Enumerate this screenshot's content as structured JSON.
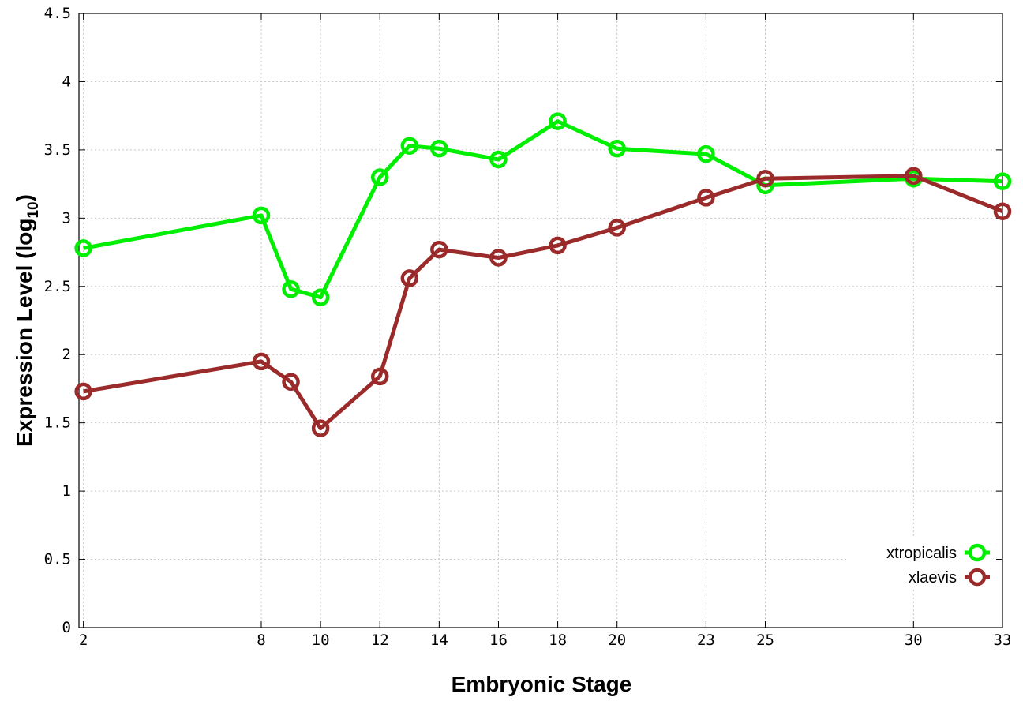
{
  "chart_data": {
    "type": "line",
    "title": "",
    "xlabel": "Embryonic Stage",
    "ylabel": "Expression Level (log",
    "ylabel_sub": "10",
    "ylabel_close": ")",
    "xlim": [
      1.85,
      33
    ],
    "ylim": [
      0,
      4.5
    ],
    "x": [
      2,
      8,
      9,
      10,
      12,
      13,
      14,
      16,
      18,
      20,
      23,
      25,
      30,
      33
    ],
    "x_ticks": [
      2,
      8,
      10,
      12,
      14,
      16,
      18,
      20,
      23,
      25,
      30,
      33
    ],
    "x_tick_labels": [
      "2",
      "8",
      "10",
      "12",
      "14",
      "16",
      "18",
      "20",
      "23",
      "25",
      "30",
      "33"
    ],
    "y_ticks": [
      0,
      0.5,
      1,
      1.5,
      2,
      2.5,
      3,
      3.5,
      4,
      4.5
    ],
    "y_tick_labels": [
      "0",
      "0.5",
      "1",
      "1.5",
      "2",
      "2.5",
      "3",
      "3.5",
      "4",
      "4.5"
    ],
    "grid": true,
    "legend_position": "bottom-right",
    "series": [
      {
        "name": "xtropicalis",
        "color": "#00ee00",
        "values": [
          2.78,
          3.02,
          2.48,
          2.42,
          3.3,
          3.53,
          3.51,
          3.43,
          3.71,
          3.51,
          3.47,
          3.24,
          3.29,
          3.27
        ]
      },
      {
        "name": "xlaevis",
        "color": "#9b2b2b",
        "values": [
          1.73,
          1.95,
          1.8,
          1.46,
          1.84,
          2.56,
          2.77,
          2.71,
          2.8,
          2.93,
          3.15,
          3.29,
          3.31,
          3.05
        ]
      }
    ]
  }
}
